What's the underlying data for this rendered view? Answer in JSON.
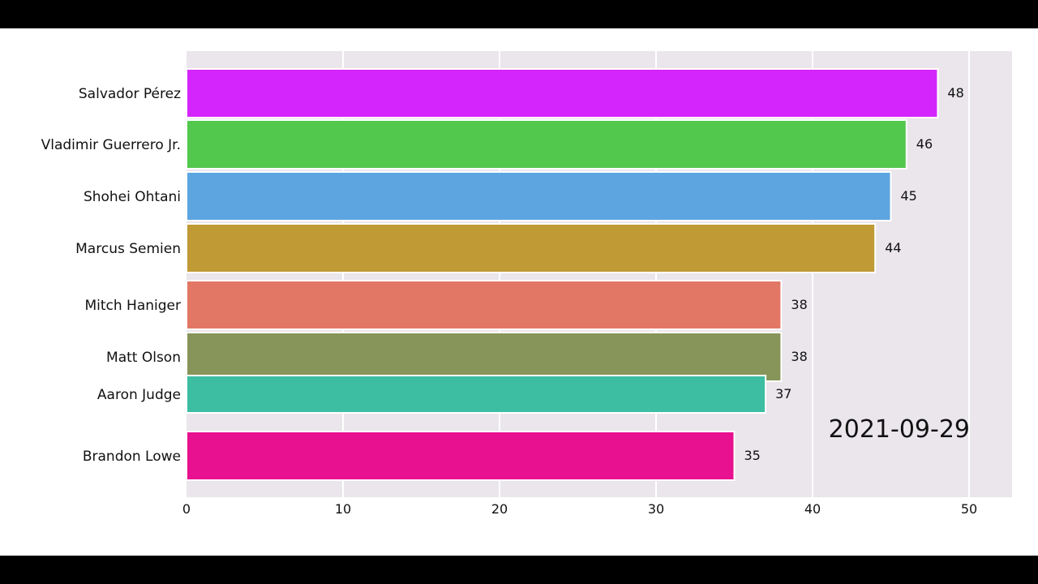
{
  "chart_data": {
    "type": "bar",
    "orientation": "horizontal",
    "title": "",
    "xlabel": "",
    "ylabel": "",
    "xlim": [
      0,
      53
    ],
    "grid": true,
    "categories": [
      "Salvador Pérez",
      "Vladimir Guerrero Jr.",
      "Shohei Ohtani",
      "Marcus Semien",
      "Mitch Haniger",
      "Matt Olson",
      "Aaron Judge",
      "Brandon Lowe"
    ],
    "values": [
      48,
      46,
      45,
      44,
      38,
      38,
      37,
      35
    ],
    "colors": [
      "#d425fc",
      "#52c84c",
      "#5da5e1",
      "#bf9a35",
      "#e37766",
      "#88955a",
      "#3dbea3",
      "#e8118f"
    ],
    "x_ticks": [
      0,
      10,
      20,
      30,
      40,
      50
    ],
    "date": "2021-09-29"
  }
}
